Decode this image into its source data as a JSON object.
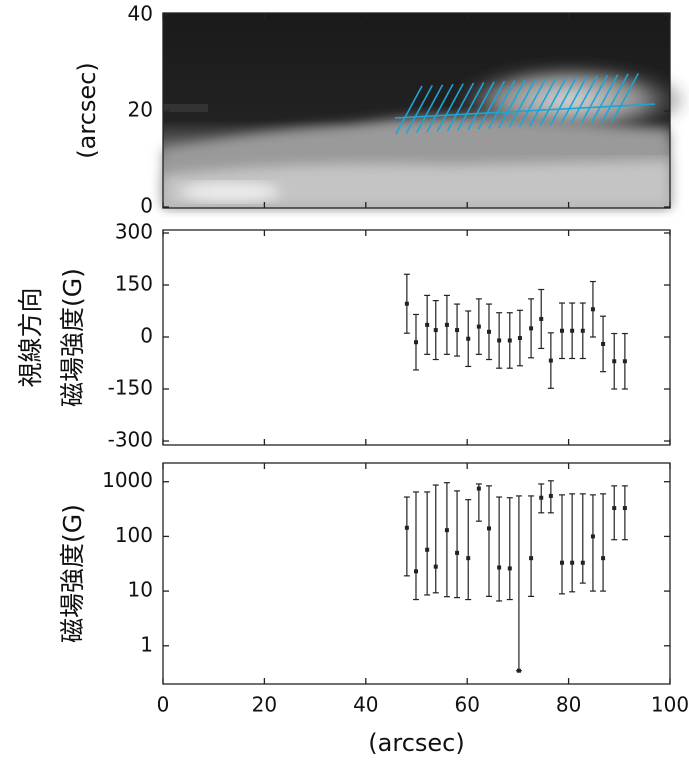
{
  "chart_data": [
    {
      "type": "image",
      "ylabel": "(arcsec)",
      "xlim": [
        0,
        100
      ],
      "ylim": [
        0,
        40
      ],
      "yticks": [
        0,
        20,
        40
      ]
    },
    {
      "type": "errorbar",
      "ylabel": [
        "視線方向",
        "磁場強度(G)"
      ],
      "xlim": [
        0,
        100
      ],
      "ylim": [
        -300,
        300
      ],
      "yticks": [
        -300,
        -150,
        0,
        150,
        300
      ],
      "x": [
        48.1,
        49.9,
        52.1,
        53.8,
        56.0,
        58.0,
        60.2,
        62.3,
        64.3,
        66.3,
        68.4,
        70.4,
        72.6,
        74.6,
        76.5,
        78.7,
        80.7,
        82.8,
        84.8,
        86.8,
        89.0,
        91.1
      ],
      "values": [
        96,
        -15,
        35,
        20,
        35,
        20,
        -5,
        30,
        15,
        -10,
        -10,
        -3,
        25,
        52,
        -68,
        18,
        18,
        18,
        80,
        -20,
        -70,
        -70
      ],
      "errors": [
        85,
        80,
        85,
        85,
        85,
        75,
        80,
        80,
        80,
        80,
        80,
        80,
        85,
        85,
        80,
        80,
        80,
        80,
        80,
        80,
        80,
        80
      ]
    },
    {
      "type": "errorbar",
      "log_y": true,
      "ylabel": "磁場強度(G)",
      "xlabel": "(arcsec)",
      "xlim": [
        0,
        100
      ],
      "ylim": [
        0.2,
        2200
      ],
      "yticks": [
        1,
        10,
        100,
        1000
      ],
      "xticks": [
        0,
        20,
        40,
        60,
        80,
        100
      ],
      "x": [
        48.1,
        49.9,
        52.1,
        53.8,
        56.0,
        58.0,
        60.2,
        62.3,
        64.3,
        66.3,
        68.4,
        70.2,
        72.6,
        74.6,
        76.5,
        78.7,
        80.7,
        82.8,
        84.8,
        86.8,
        89.0,
        91.1
      ],
      "values": [
        144,
        23,
        57,
        28,
        130,
        50,
        40,
        750,
        140,
        27,
        26,
        0.35,
        40,
        510,
        550,
        33,
        33,
        33,
        100,
        40,
        330,
        330
      ],
      "lower": [
        19,
        7,
        8.5,
        9.3,
        7.9,
        7.6,
        7,
        190,
        8,
        6.6,
        7,
        0.35,
        8,
        270,
        270,
        8.9,
        9.7,
        14,
        10,
        10,
        87,
        87
      ],
      "upper": [
        525,
        650,
        650,
        870,
        960,
        680,
        470,
        910,
        840,
        525,
        510,
        550,
        550,
        910,
        1040,
        575,
        600,
        600,
        575,
        600,
        840,
        840
      ]
    }
  ]
}
